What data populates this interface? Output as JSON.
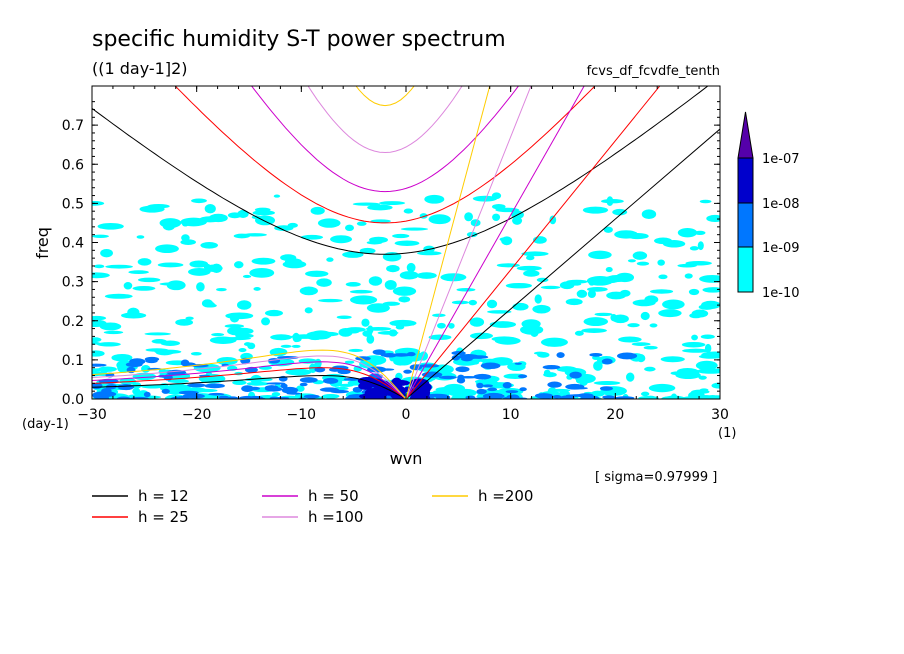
{
  "chart_data": {
    "type": "heatmap",
    "title": "specific humidity S-T power spectrum",
    "subtitle": "((1 day-1]2)",
    "experiment_label": "fcvs_df_fcvdfe_tenth",
    "sigma_label": "[ sigma=0.97999 ]",
    "xlabel": "wvn",
    "ylabel": "freq",
    "x_unit": "(1)",
    "y_unit": "(day-1)",
    "xlim": [
      -30,
      30
    ],
    "ylim": [
      0,
      0.8
    ],
    "x_ticks": [
      -30,
      -20,
      -10,
      0,
      10,
      20,
      30
    ],
    "x_tick_labels": [
      "−30",
      "−20",
      "−10",
      "0",
      "10",
      "20",
      "30"
    ],
    "y_ticks": [
      0,
      0.1,
      0.2,
      0.3,
      0.4,
      0.5,
      0.6,
      0.7
    ],
    "y_tick_labels": [
      "0.0",
      "0.1",
      "0.2",
      "0.3",
      "0.4",
      "0.5",
      "0.6",
      "0.7"
    ],
    "colorbar": {
      "levels": [
        "1e-10",
        "1e-09",
        "1e-08",
        "1e-07"
      ],
      "colors": [
        "#00ffff",
        "#0077ff",
        "#0000cc",
        "#330099",
        "#5500aa"
      ]
    },
    "dispersion_curves": [
      {
        "name": "h = 12",
        "h": 12,
        "color": "#000000"
      },
      {
        "name": "h = 25",
        "h": 25,
        "color": "#ff0000"
      },
      {
        "name": "h = 50",
        "h": 50,
        "color": "#cc00cc"
      },
      {
        "name": "h =100",
        "h": 100,
        "color": "#dd88dd"
      },
      {
        "name": "h =200",
        "h": 200,
        "color": "#ffcc00"
      }
    ],
    "curve_minimum_freq": {
      "h = 12": 0.37,
      "h = 25": 0.45,
      "h = 50": 0.53,
      "h =100": 0.63,
      "h =200": 0.75
    },
    "curve_minimum_wvn": -2,
    "rossby_peak": {
      "h = 12": 0.06,
      "h = 25": 0.08,
      "h = 50": 0.095,
      "h =100": 0.11,
      "h =200": 0.125
    },
    "rossby_peak_wvn": -8,
    "kelvin_slope_freq_per_wvn": {
      "h = 12": 0.023,
      "h = 25": 0.033,
      "h = 50": 0.047,
      "h =100": 0.067,
      "h =200": 0.1
    }
  }
}
